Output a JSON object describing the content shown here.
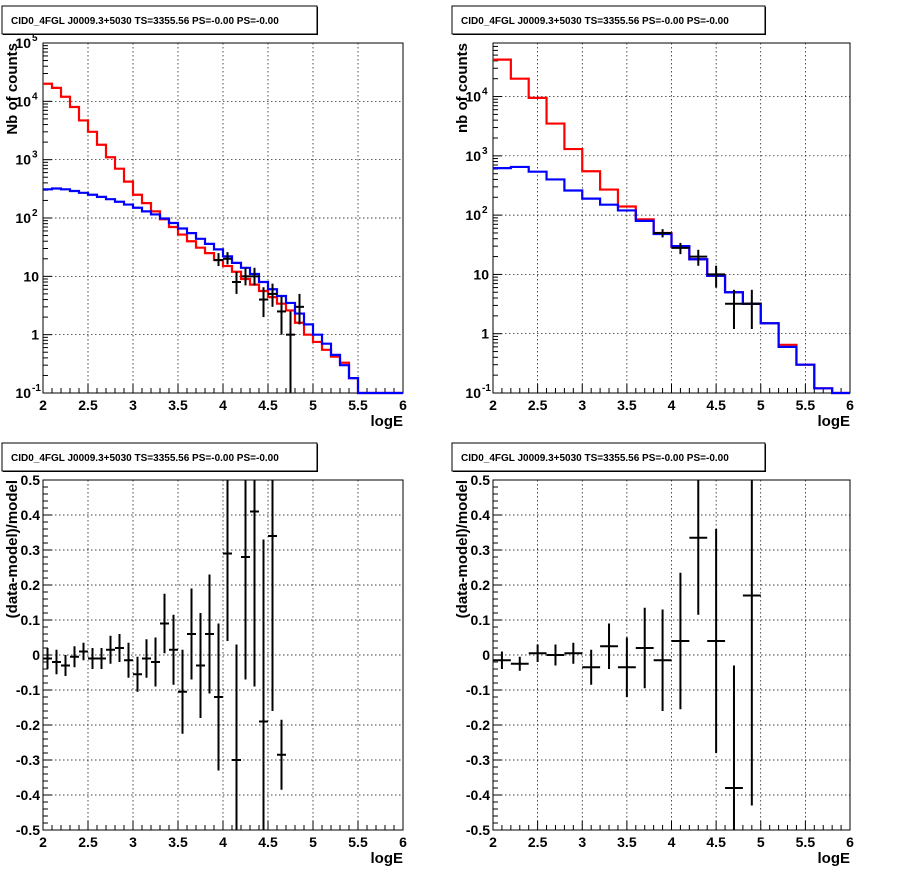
{
  "chart_data": [
    {
      "type": "line",
      "title": "CID0_4FGL J0009.3+5030 TS=3355.56 PS=-0.00 PS=-0.00",
      "xlabel": "logE",
      "ylabel": "Nb of counts",
      "xlim": [
        2,
        6
      ],
      "ylim": [
        0.1,
        100000
      ],
      "log_y": true,
      "grid": true,
      "x_ticks": [
        "2",
        "2.5",
        "3",
        "3.5",
        "4",
        "4.5",
        "5",
        "5.5",
        "6"
      ],
      "y_ticks": [
        "10^-1",
        "1",
        "10",
        "10^2",
        "10^3",
        "10^4",
        "10^5"
      ],
      "bin_edges": [
        2.0,
        2.1,
        2.2,
        2.3,
        2.4,
        2.5,
        2.6,
        2.7,
        2.8,
        2.9,
        3.0,
        3.1,
        3.2,
        3.3,
        3.4,
        3.5,
        3.6,
        3.7,
        3.8,
        3.9,
        4.0,
        4.1,
        4.2,
        4.3,
        4.4,
        4.5,
        4.6,
        4.7,
        4.8,
        4.9,
        5.0,
        5.1,
        5.2,
        5.3,
        5.4,
        5.5,
        5.6,
        5.7,
        5.8,
        5.9,
        6.0
      ],
      "series": [
        {
          "color": "#ff0000",
          "style": "step",
          "values": [
            20000,
            17000,
            12000,
            8000,
            4700,
            3000,
            1800,
            1100,
            700,
            420,
            250,
            180,
            130,
            95,
            70,
            52,
            40,
            31,
            25,
            19,
            15,
            12,
            9,
            7.2,
            5.6,
            4.4,
            3.4,
            2.6,
            1.6,
            1.0,
            0.75,
            0.55,
            0.42,
            0.33,
            0.18,
            0.1,
            0.1,
            0.1,
            0.1,
            0.1
          ]
        },
        {
          "color": "#0000ff",
          "style": "step",
          "values": [
            310,
            320,
            310,
            290,
            270,
            250,
            230,
            210,
            190,
            170,
            150,
            130,
            115,
            98,
            82,
            66,
            55,
            44,
            36,
            29,
            22,
            17,
            14,
            11,
            8,
            6,
            4.6,
            3.5,
            2.3,
            1.5,
            1.0,
            0.7,
            0.45,
            0.3,
            0.18,
            0.1,
            0.1,
            0.1,
            0.1,
            0.1
          ]
        }
      ],
      "data_points": {
        "color": "#000000",
        "x": [
          3.95,
          4.05,
          4.15,
          4.25,
          4.35,
          4.45,
          4.55,
          4.65,
          4.75,
          4.85
        ],
        "y": [
          19,
          20,
          8,
          10,
          10,
          4,
          5,
          2.5,
          1,
          3
        ],
        "y_low": [
          15,
          16,
          5,
          7,
          7,
          2,
          3,
          1,
          0.1,
          1.5
        ],
        "y_high": [
          25,
          26,
          12,
          14,
          14,
          6.5,
          7.5,
          4.5,
          2.5,
          5
        ]
      }
    },
    {
      "type": "line",
      "title": "CID0_4FGL J0009.3+5030 TS=3355.56 PS=-0.00 PS=-0.00",
      "xlabel": "logE",
      "ylabel": "nb of counts",
      "xlim": [
        2,
        6
      ],
      "ylim": [
        0.1,
        80000
      ],
      "log_y": true,
      "grid": true,
      "x_ticks": [
        "2",
        "2.5",
        "3",
        "3.5",
        "4",
        "4.5",
        "5",
        "5.5",
        "6"
      ],
      "y_ticks": [
        "10^-1",
        "1",
        "10",
        "10^2",
        "10^3",
        "10^4"
      ],
      "bin_edges": [
        2.0,
        2.2,
        2.4,
        2.6,
        2.8,
        3.0,
        3.2,
        3.4,
        3.6,
        3.8,
        4.0,
        4.2,
        4.4,
        4.6,
        4.8,
        5.0,
        5.2,
        5.4,
        5.6,
        5.8,
        6.0
      ],
      "series": [
        {
          "color": "#ff0000",
          "style": "step",
          "values": [
            42000,
            20000,
            9500,
            3500,
            1300,
            550,
            270,
            140,
            85,
            50,
            29,
            18,
            9.5,
            5,
            3.2,
            1.5,
            0.65,
            0.3,
            0.12,
            0.1
          ]
        },
        {
          "color": "#0000ff",
          "style": "step",
          "values": [
            620,
            650,
            540,
            400,
            260,
            190,
            150,
            120,
            80,
            48,
            30,
            18,
            9.5,
            5,
            3.2,
            1.5,
            0.6,
            0.3,
            0.12,
            0.1
          ]
        }
      ],
      "data_points": {
        "color": "#000000",
        "x": [
          3.9,
          4.1,
          4.3,
          4.5,
          4.7,
          4.9
        ],
        "y": [
          50,
          28,
          20,
          10,
          3.2,
          3.2
        ],
        "y_low": [
          42,
          22,
          14,
          6,
          1.2,
          1.2
        ],
        "y_high": [
          58,
          34,
          26,
          14,
          5.5,
          5.5
        ]
      }
    },
    {
      "type": "scatter",
      "title": "CID0_4FGL J0009.3+5030 TS=3355.56 PS=-0.00 PS=-0.00",
      "xlabel": "logE",
      "ylabel": "(data-model)/model",
      "xlim": [
        2,
        6
      ],
      "ylim": [
        -0.5,
        0.5
      ],
      "grid": true,
      "x_ticks": [
        "2",
        "2.5",
        "3",
        "3.5",
        "4",
        "4.5",
        "5",
        "5.5",
        "6"
      ],
      "y_ticks": [
        "-0.5",
        "-0.4",
        "-0.3",
        "-0.2",
        "-0.1",
        "0",
        "0.1",
        "0.2",
        "0.3",
        "0.4",
        "0.5"
      ],
      "x_halfwidth": 0.05,
      "x": [
        2.05,
        2.15,
        2.25,
        2.35,
        2.45,
        2.55,
        2.65,
        2.75,
        2.85,
        2.95,
        3.05,
        3.15,
        3.25,
        3.35,
        3.45,
        3.55,
        3.65,
        3.75,
        3.85,
        3.95,
        4.05,
        4.15,
        4.25,
        4.35,
        4.45,
        4.55,
        4.65
      ],
      "y": [
        -0.01,
        -0.02,
        -0.03,
        -0.005,
        0.01,
        -0.01,
        -0.01,
        0.015,
        0.02,
        -0.015,
        -0.055,
        -0.01,
        -0.02,
        0.09,
        0.015,
        -0.105,
        0.06,
        -0.03,
        0.06,
        -0.12,
        0.29,
        -0.3,
        0.28,
        0.41,
        -0.19,
        0.34,
        -0.285
      ],
      "err": [
        0.03,
        0.035,
        0.03,
        0.03,
        0.025,
        0.03,
        0.03,
        0.04,
        0.04,
        0.05,
        0.05,
        0.055,
        0.07,
        0.085,
        0.1,
        0.12,
        0.13,
        0.15,
        0.17,
        0.21,
        0.25,
        0.33,
        0.35,
        0.5,
        0.52,
        0.5,
        0.1
      ]
    },
    {
      "type": "scatter",
      "title": "CID0_4FGL J0009.3+5030 TS=3355.56 PS=-0.00 PS=-0.00",
      "xlabel": "logE",
      "ylabel": "(data-model)/model",
      "xlim": [
        2,
        6
      ],
      "ylim": [
        -0.5,
        0.5
      ],
      "grid": true,
      "x_ticks": [
        "2",
        "2.5",
        "3",
        "3.5",
        "4",
        "4.5",
        "5",
        "5.5",
        "6"
      ],
      "y_ticks": [
        "-0.5",
        "-0.4",
        "-0.3",
        "-0.2",
        "-0.1",
        "0",
        "0.1",
        "0.2",
        "0.3",
        "0.4",
        "0.5"
      ],
      "x_halfwidth": 0.1,
      "x": [
        2.1,
        2.3,
        2.5,
        2.7,
        2.9,
        3.1,
        3.3,
        3.5,
        3.7,
        3.9,
        4.1,
        4.3,
        4.5,
        4.7,
        4.9
      ],
      "y": [
        -0.015,
        -0.025,
        0.005,
        0.0,
        0.005,
        -0.035,
        0.025,
        -0.035,
        0.02,
        -0.015,
        0.04,
        0.335,
        0.04,
        -0.38,
        0.17
      ],
      "err": [
        0.025,
        0.02,
        0.025,
        0.03,
        0.03,
        0.05,
        0.065,
        0.085,
        0.115,
        0.145,
        0.195,
        0.22,
        0.32,
        0.35,
        0.6
      ]
    }
  ]
}
